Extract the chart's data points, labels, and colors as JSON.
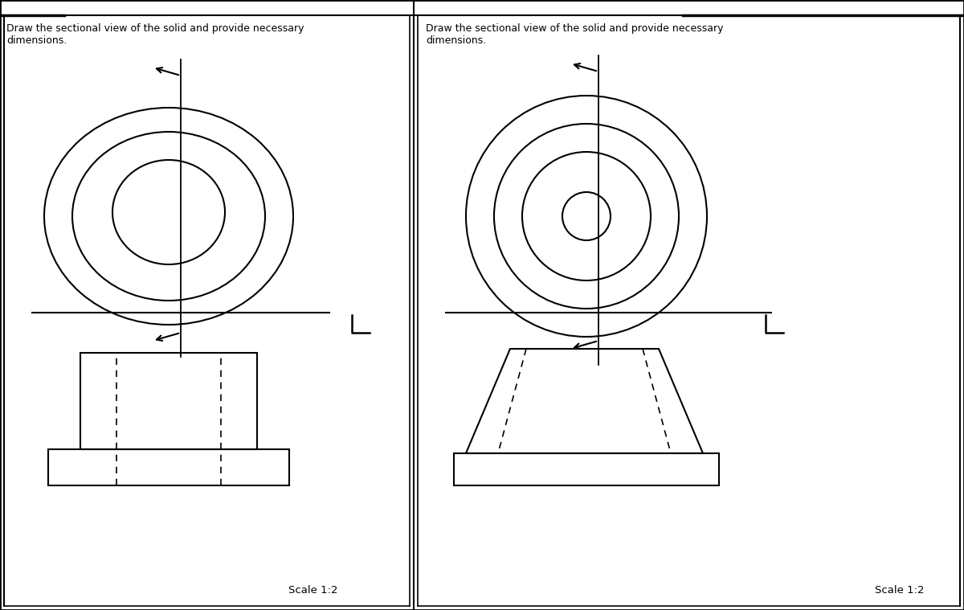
{
  "title_left": "Draw the sectional view of the solid and provide necessary\ndimensions.",
  "title_right": "Draw the sectional view of the solid and provide necessary\ndimensions.",
  "scale_text": "Scale 1:2",
  "bg_color": "#ffffff",
  "line_color": "#000000"
}
